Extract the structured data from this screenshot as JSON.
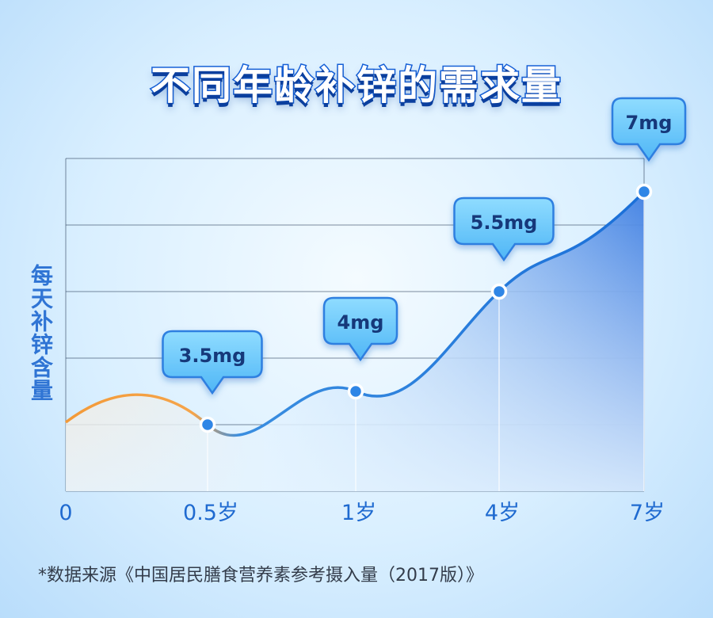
{
  "title": "不同年龄补锌的需求量",
  "chart_data": {
    "type": "line",
    "ylabel": "每天补锌含量",
    "x_ticks": [
      "0",
      "0.5岁",
      "1岁",
      "4岁",
      "7岁"
    ],
    "points": [
      {
        "x": "0.5岁",
        "value": 3.5,
        "label": "3.5mg"
      },
      {
        "x": "1岁",
        "value": 4,
        "label": "4mg"
      },
      {
        "x": "4岁",
        "value": 5.5,
        "label": "5.5mg"
      },
      {
        "x": "7岁",
        "value": 7,
        "label": "7mg"
      }
    ],
    "grid": true,
    "colors": {
      "line_start": "#f39a38",
      "line": "#1a6fd8",
      "fill": "#3b7fe0",
      "callout": "#63c8ff"
    }
  },
  "source": "*数据来源《中国居民膳食营养素参考摄入量（2017版）》"
}
